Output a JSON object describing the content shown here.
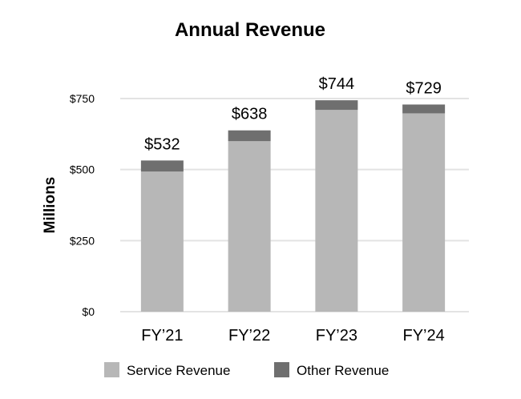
{
  "chart_data": {
    "type": "bar",
    "stacked": true,
    "title": "Annual Revenue",
    "xlabel": "",
    "ylabel": "Millions",
    "ylim": [
      0,
      750
    ],
    "yticks": [
      0,
      250,
      500,
      750
    ],
    "ytick_labels": [
      "$0",
      "$250",
      "$500",
      "$750"
    ],
    "grid": true,
    "legend_position": "bottom",
    "categories": [
      "FY’21",
      "FY’22",
      "FY’23",
      "FY’24"
    ],
    "series": [
      {
        "name": "Service Revenue",
        "color": "#b7b7b7",
        "values": [
          493,
          600,
          710,
          698
        ]
      },
      {
        "name": "Other Revenue",
        "color": "#6f6f6f",
        "values": [
          39,
          38,
          34,
          31
        ]
      }
    ],
    "totals": [
      532,
      638,
      744,
      729
    ],
    "total_labels": [
      "$532",
      "$638",
      "$744",
      "$729"
    ]
  }
}
